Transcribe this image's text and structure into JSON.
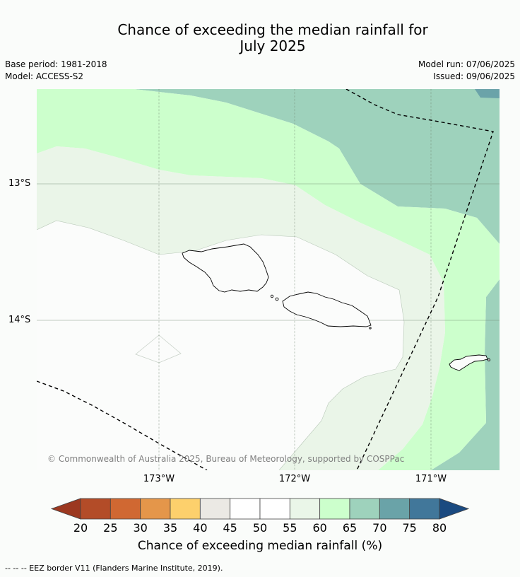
{
  "title_line1": "Chance of exceeding the median rainfall for",
  "title_line2": "July 2025",
  "meta": {
    "base_period": "Base period: 1981-2018",
    "model": "Model: ACCESS-S2",
    "model_run": "Model run: 07/06/2025",
    "issued": "Issued: 09/06/2025"
  },
  "lat_labels": [
    "13°S",
    "14°S"
  ],
  "lon_labels": [
    "173°W",
    "172°W",
    "171°W"
  ],
  "copyright": "© Commonwealth of Australia 2025, Bureau of Meteorology, supported by COSPPac",
  "colorbar": {
    "title": "Chance of exceeding median rainfall (%)",
    "ticks": [
      "20",
      "25",
      "30",
      "35",
      "40",
      "45",
      "50",
      "55",
      "60",
      "65",
      "70",
      "75",
      "80"
    ],
    "under_color": "#9c3820",
    "over_color": "#1a4a80",
    "colors": [
      "#b34c28",
      "#d06832",
      "#e4964a",
      "#fdd06c",
      "#ebe9e4",
      "#ffffff",
      "#ffffff",
      "#eaf6e8",
      "#ccffcc",
      "#9ed2bc",
      "#6aa3a8",
      "#41779a"
    ]
  },
  "footnote": "--  --  -- EEZ border V11 (Flanders Marine Institute, 2019).",
  "map_colors": {
    "band_50_55": "#fbfcfb",
    "band_55_60": "#eaf5e8",
    "band_60_65": "#ccffcc",
    "band_65_70": "#9ed2bc",
    "band_70_75": "#6ba3a9"
  }
}
